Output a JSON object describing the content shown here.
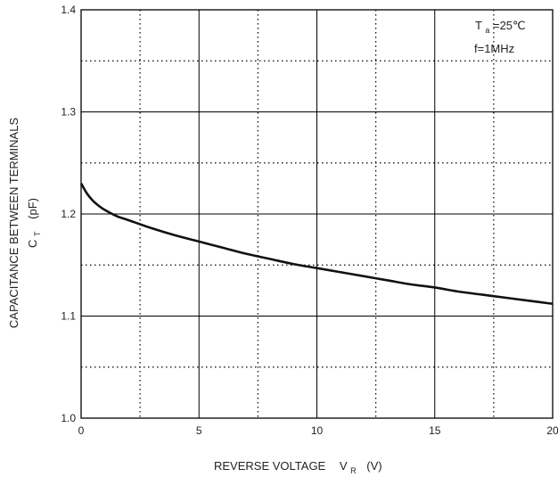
{
  "chart_data": {
    "type": "line",
    "title": "",
    "xlabel": {
      "main": "REVERSE VOLTAGE",
      "symbol": "V",
      "sub": "R",
      "unit": "(V)"
    },
    "ylabel": {
      "main": "CAPACITANCE BETWEEN TERMINALS",
      "symbol": "C",
      "sub": "T",
      "unit": "(pF)"
    },
    "xlim": [
      0,
      20
    ],
    "ylim": [
      1.0,
      1.4
    ],
    "x_ticks": [
      "0",
      "5",
      "10",
      "15",
      "20"
    ],
    "y_ticks": [
      "1.0",
      "1.1",
      "1.2",
      "1.3",
      "1.4"
    ],
    "grid": {
      "major": "solid",
      "minor": "dotted"
    },
    "conditions": [
      {
        "symbol": "T",
        "sub": "a",
        "rest": "=25℃"
      },
      {
        "symbol": "",
        "sub": "",
        "rest": "f=1MHz"
      }
    ],
    "series": [
      {
        "color": "#111111",
        "points": [
          [
            0,
            1.23
          ],
          [
            0.25,
            1.22
          ],
          [
            0.5,
            1.213
          ],
          [
            0.75,
            1.208
          ],
          [
            1,
            1.204
          ],
          [
            1.5,
            1.198
          ],
          [
            2,
            1.194
          ],
          [
            3,
            1.186
          ],
          [
            4,
            1.179
          ],
          [
            5,
            1.173
          ],
          [
            6,
            1.167
          ],
          [
            7,
            1.161
          ],
          [
            8,
            1.156
          ],
          [
            9,
            1.151
          ],
          [
            10,
            1.147
          ],
          [
            11,
            1.143
          ],
          [
            12,
            1.139
          ],
          [
            13,
            1.135
          ],
          [
            14,
            1.131
          ],
          [
            15,
            1.128
          ],
          [
            16,
            1.124
          ],
          [
            17,
            1.121
          ],
          [
            18,
            1.118
          ],
          [
            19,
            1.115
          ],
          [
            20,
            1.112
          ]
        ]
      }
    ]
  }
}
